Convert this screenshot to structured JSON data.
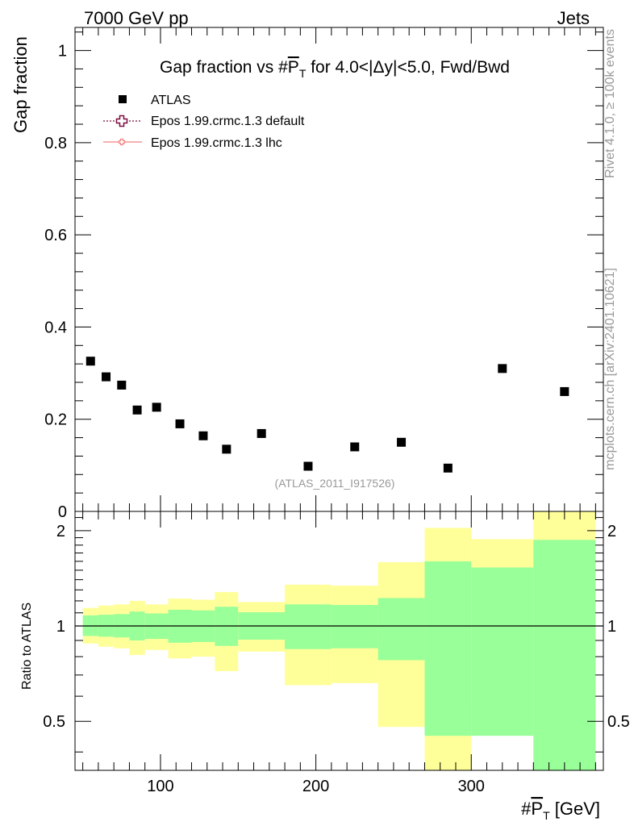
{
  "header": {
    "left": "7000 GeV pp",
    "right": "Jets",
    "side_top": "Rivet 4.1.0, ≥ 100k events",
    "side_bottom": "mcplots.cern.ch [arXiv:2401.10621]"
  },
  "chart_data": [
    {
      "type": "scatter",
      "panel": "main",
      "title_prefix": "Gap fraction vs #",
      "title_var": "P",
      "title_sub": "T",
      "title_suffix": " for 4.0<|Δy|<5.0, Fwd/Bwd",
      "ylabel": "Gap fraction",
      "xlabel_prefix": "#",
      "xlabel_var": "P",
      "xlabel_sub": "T",
      "xlabel_suffix": " [GeV]",
      "xlim": [
        45,
        385
      ],
      "ylim": [
        0,
        1.05
      ],
      "y_ticks": [
        0,
        0.2,
        0.4,
        0.6,
        0.8,
        1
      ],
      "y_tick_labels": [
        "0",
        "0.2",
        "0.4",
        "0.6",
        "0.8",
        "1"
      ],
      "x_ticks": [
        100,
        200,
        300
      ],
      "x_tick_labels": [
        "100",
        "200",
        "300"
      ],
      "watermark": "(ATLAS_2011_I917526)",
      "legend": [
        {
          "label": "ATLAS",
          "marker": "square",
          "color": "#000000"
        },
        {
          "label": "Epos 1.99.crmc.1.3 default",
          "marker": "open-cross",
          "color": "#7a0b3f",
          "line": "dotted"
        },
        {
          "label": "Epos 1.99.crmc.1.3 lhc",
          "marker": "small-cross",
          "color": "#f08080",
          "line": "solid"
        }
      ],
      "series": [
        {
          "name": "ATLAS",
          "x": [
            55,
            65,
            75,
            85,
            97.5,
            112.5,
            127.5,
            142.5,
            165,
            195,
            225,
            255,
            285,
            320,
            360
          ],
          "y": [
            0.326,
            0.292,
            0.274,
            0.22,
            0.226,
            0.19,
            0.164,
            0.135,
            0.169,
            0.098,
            0.14,
            0.15,
            0.094,
            0.31,
            0.26
          ]
        }
      ]
    },
    {
      "type": "area",
      "panel": "ratio",
      "ylabel": "Ratio to ATLAS",
      "ylim": [
        0.35,
        2.3
      ],
      "y_ticks": [
        0.5,
        1,
        2
      ],
      "y_tick_labels": [
        "0.5",
        "1",
        "2"
      ],
      "reference_line": 1,
      "bins": [
        {
          "lo": 50,
          "hi": 60,
          "yellow": [
            0.88,
            1.14
          ],
          "green": [
            0.93,
            1.08
          ]
        },
        {
          "lo": 60,
          "hi": 70,
          "yellow": [
            0.86,
            1.16
          ],
          "green": [
            0.925,
            1.085
          ]
        },
        {
          "lo": 70,
          "hi": 80,
          "yellow": [
            0.85,
            1.17
          ],
          "green": [
            0.92,
            1.09
          ]
        },
        {
          "lo": 80,
          "hi": 90,
          "yellow": [
            0.81,
            1.2
          ],
          "green": [
            0.9,
            1.11
          ]
        },
        {
          "lo": 90,
          "hi": 105,
          "yellow": [
            0.84,
            1.17
          ],
          "green": [
            0.91,
            1.095
          ]
        },
        {
          "lo": 105,
          "hi": 120,
          "yellow": [
            0.79,
            1.22
          ],
          "green": [
            0.885,
            1.125
          ]
        },
        {
          "lo": 120,
          "hi": 135,
          "yellow": [
            0.8,
            1.21
          ],
          "green": [
            0.89,
            1.12
          ]
        },
        {
          "lo": 135,
          "hi": 150,
          "yellow": [
            0.72,
            1.28
          ],
          "green": [
            0.865,
            1.15
          ]
        },
        {
          "lo": 150,
          "hi": 180,
          "yellow": [
            0.83,
            1.19
          ],
          "green": [
            0.905,
            1.105
          ]
        },
        {
          "lo": 180,
          "hi": 210,
          "yellow": [
            0.65,
            1.35
          ],
          "green": [
            0.845,
            1.17
          ]
        },
        {
          "lo": 210,
          "hi": 240,
          "yellow": [
            0.66,
            1.34
          ],
          "green": [
            0.85,
            1.165
          ]
        },
        {
          "lo": 240,
          "hi": 270,
          "yellow": [
            0.48,
            1.59
          ],
          "green": [
            0.78,
            1.225
          ]
        },
        {
          "lo": 270,
          "hi": 300,
          "yellow": [
            0.35,
            2.04
          ],
          "green": [
            0.45,
            1.6
          ]
        },
        {
          "lo": 300,
          "hi": 340,
          "yellow": [
            0.59,
            1.88
          ],
          "green": [
            0.45,
            1.53
          ]
        },
        {
          "lo": 340,
          "hi": 380,
          "yellow": [
            0.35,
            2.3
          ],
          "green": [
            0.35,
            1.87
          ]
        }
      ]
    }
  ]
}
